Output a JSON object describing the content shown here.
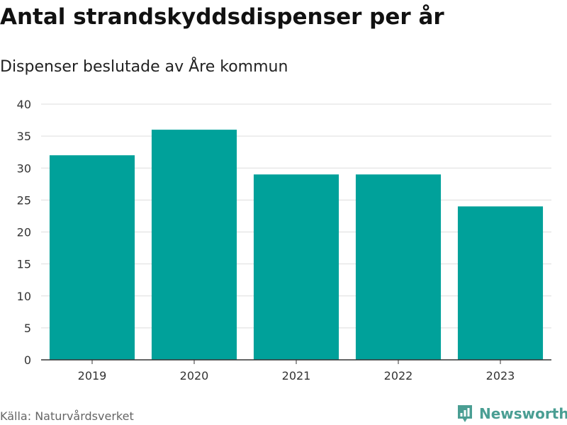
{
  "header": {
    "title": "Antal strandskyddsdispenser per år",
    "subtitle": "Dispenser beslutade av Åre kommun"
  },
  "footer": {
    "source": "Källa: Naturvårdsverket",
    "brand": "Newsworthy",
    "brand_icon": "newsworthy-logo-icon",
    "brand_color": "#4a9e93"
  },
  "chart_data": {
    "type": "bar",
    "categories": [
      "2019",
      "2020",
      "2021",
      "2022",
      "2023"
    ],
    "values": [
      32,
      36,
      29,
      29,
      24
    ],
    "xlabel": "",
    "ylabel": "",
    "ylim": [
      0,
      40
    ],
    "yticks": [
      0,
      5,
      10,
      15,
      20,
      25,
      30,
      35,
      40
    ],
    "grid": true,
    "legend": "none",
    "bar_color": "#00a19a",
    "grid_color": "#dddddd",
    "axis_color": "#333333"
  }
}
